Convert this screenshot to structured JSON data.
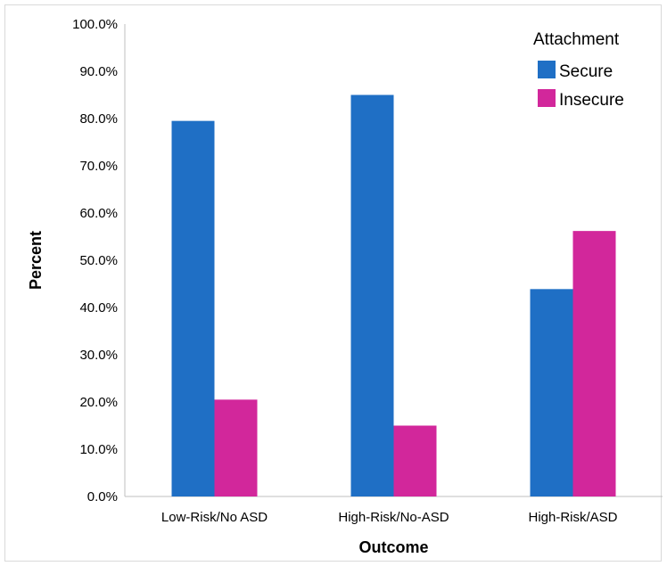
{
  "chart_data": {
    "type": "bar",
    "categories": [
      "Low-Risk/No ASD",
      "High-Risk/No-ASD",
      "High-Risk/ASD"
    ],
    "series": [
      {
        "name": "Secure",
        "values": [
          79.5,
          85.0,
          43.9
        ],
        "color": "#1f6fc5"
      },
      {
        "name": "Insecure",
        "values": [
          20.5,
          15.0,
          56.2
        ],
        "color": "#d2279b"
      }
    ],
    "xlabel": "Outcome",
    "ylabel": "Percent",
    "ylim": [
      0,
      100
    ],
    "yticks": [
      "0.0%",
      "10.0%",
      "20.0%",
      "30.0%",
      "40.0%",
      "50.0%",
      "60.0%",
      "70.0%",
      "80.0%",
      "90.0%",
      "100.0%"
    ],
    "legend": {
      "title": "Attachment",
      "position": "top-right"
    },
    "grid": false
  }
}
